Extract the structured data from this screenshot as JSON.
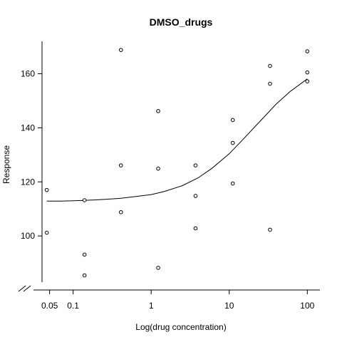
{
  "chart_data": {
    "type": "scatter",
    "title": "DMSO_drugs",
    "xlabel": "Log(drug concentration)",
    "ylabel": "Response",
    "x_scale": "log",
    "xlim": [
      0.04,
      145
    ],
    "ylim": [
      80,
      172
    ],
    "x_ticks": [
      {
        "value": 0.05,
        "label": "0.05"
      },
      {
        "value": 0.1,
        "label": "0.1"
      },
      {
        "value": 1,
        "label": "1"
      },
      {
        "value": 10,
        "label": "10"
      },
      {
        "value": 100,
        "label": "100"
      }
    ],
    "y_ticks": [
      {
        "value": 100,
        "label": "100"
      },
      {
        "value": 120,
        "label": "120"
      },
      {
        "value": 140,
        "label": "140"
      },
      {
        "value": 160,
        "label": "160"
      }
    ],
    "points": [
      {
        "x": 0.046,
        "y": 117
      },
      {
        "x": 0.046,
        "y": 101.2
      },
      {
        "x": 0.14,
        "y": 113.2
      },
      {
        "x": 0.14,
        "y": 93.1
      },
      {
        "x": 0.14,
        "y": 85.4
      },
      {
        "x": 0.41,
        "y": 168.8
      },
      {
        "x": 0.41,
        "y": 126.1
      },
      {
        "x": 0.41,
        "y": 108.8
      },
      {
        "x": 1.23,
        "y": 146.2
      },
      {
        "x": 1.23,
        "y": 124.9
      },
      {
        "x": 1.23,
        "y": 88.2
      },
      {
        "x": 3.7,
        "y": 126.1
      },
      {
        "x": 3.7,
        "y": 114.8
      },
      {
        "x": 3.7,
        "y": 102.8
      },
      {
        "x": 11.1,
        "y": 142.9
      },
      {
        "x": 11.1,
        "y": 134.4
      },
      {
        "x": 11.1,
        "y": 119.4
      },
      {
        "x": 33.3,
        "y": 162.9
      },
      {
        "x": 33.3,
        "y": 156.3
      },
      {
        "x": 33.3,
        "y": 102.3
      },
      {
        "x": 100,
        "y": 168.3
      },
      {
        "x": 100,
        "y": 160.5
      },
      {
        "x": 100,
        "y": 157.2
      }
    ],
    "fit_curve": [
      {
        "x": 0.046,
        "y": 112.9
      },
      {
        "x": 0.07,
        "y": 112.9
      },
      {
        "x": 0.1,
        "y": 113
      },
      {
        "x": 0.15,
        "y": 113.2
      },
      {
        "x": 0.25,
        "y": 113.5
      },
      {
        "x": 0.4,
        "y": 113.9
      },
      {
        "x": 0.6,
        "y": 114.5
      },
      {
        "x": 1,
        "y": 115.3
      },
      {
        "x": 1.5,
        "y": 116.5
      },
      {
        "x": 2.5,
        "y": 118.6
      },
      {
        "x": 4,
        "y": 121.5
      },
      {
        "x": 6,
        "y": 125
      },
      {
        "x": 10,
        "y": 130.4
      },
      {
        "x": 15,
        "y": 135.7
      },
      {
        "x": 25,
        "y": 142.5
      },
      {
        "x": 40,
        "y": 148.8
      },
      {
        "x": 60,
        "y": 153.4
      },
      {
        "x": 100,
        "y": 158.1
      }
    ],
    "axis_break": true,
    "grid": false,
    "legend": "none"
  }
}
